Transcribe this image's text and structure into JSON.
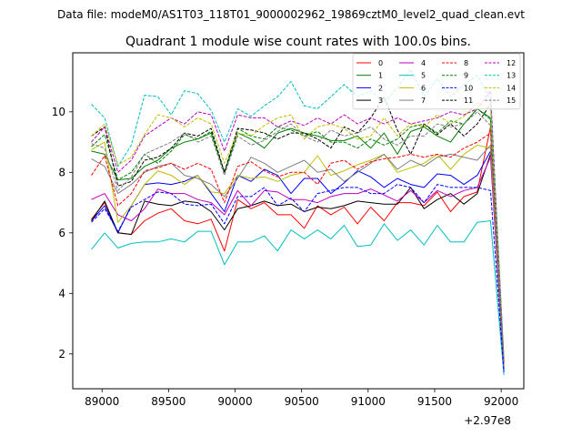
{
  "header": {
    "data_file": "Data file: modeM0/AS1T03_118T01_9000002962_19869cztM0_level2_quad_clean.evt"
  },
  "chart_data": {
    "type": "line",
    "title": "Quadrant 1 module wise count rates with 100.0s bins.",
    "xlabel": "",
    "ylabel": "",
    "x_offset_label": "+2.97e8",
    "x_ticks": [
      89000,
      89500,
      90000,
      90500,
      91000,
      91500,
      92000
    ],
    "x_tick_labels": [
      "89000",
      "89500",
      "90000",
      "90500",
      "91000",
      "91500",
      "92000"
    ],
    "y_ticks": [
      2,
      4,
      6,
      8,
      10
    ],
    "y_tick_labels": [
      "2",
      "4",
      "6",
      "8",
      "10"
    ],
    "xlim": [
      88780,
      92170
    ],
    "ylim": [
      0.85,
      11.95
    ],
    "grid": false,
    "legend": {
      "location": "top-right",
      "columns": 4
    },
    "x": [
      88920,
      89020,
      89120,
      89220,
      89320,
      89420,
      89520,
      89620,
      89720,
      89820,
      89920,
      90020,
      90120,
      90220,
      90320,
      90420,
      90520,
      90620,
      90720,
      90820,
      90920,
      91020,
      91120,
      91220,
      91320,
      91420,
      91520,
      91620,
      91720,
      91820,
      91920,
      92020
    ],
    "series": [
      {
        "name": "0",
        "color": "#ff0000",
        "dash": "solid",
        "values": [
          6.45,
          7.0,
          6.0,
          5.95,
          6.4,
          6.65,
          6.8,
          6.4,
          6.3,
          6.45,
          5.4,
          7.1,
          6.8,
          7.0,
          6.6,
          6.6,
          6.15,
          6.9,
          6.6,
          6.85,
          6.3,
          6.85,
          6.4,
          7.0,
          7.0,
          6.9,
          7.35,
          6.7,
          7.2,
          7.35,
          9.5,
          1.5
        ]
      },
      {
        "name": "1",
        "color": "#008000",
        "dash": "solid",
        "values": [
          8.7,
          8.6,
          7.75,
          7.8,
          8.2,
          8.4,
          8.8,
          9.0,
          9.1,
          9.3,
          8.0,
          9.3,
          9.1,
          8.8,
          9.3,
          9.45,
          9.3,
          9.2,
          9.05,
          9.05,
          9.2,
          8.8,
          9.3,
          8.6,
          9.35,
          9.5,
          9.2,
          9.0,
          9.6,
          10.1,
          9.8,
          1.6
        ]
      },
      {
        "name": "2",
        "color": "#0000ff",
        "dash": "solid",
        "values": [
          6.4,
          6.9,
          6.0,
          6.9,
          7.6,
          7.65,
          7.6,
          7.7,
          7.9,
          7.3,
          6.7,
          7.9,
          7.7,
          8.1,
          7.9,
          7.3,
          7.8,
          7.8,
          7.3,
          7.65,
          8.05,
          7.85,
          7.5,
          7.8,
          7.6,
          7.5,
          7.95,
          7.9,
          7.6,
          7.9,
          8.7,
          1.4
        ]
      },
      {
        "name": "3",
        "color": "#000000",
        "dash": "solid",
        "values": [
          6.4,
          7.05,
          6.0,
          5.95,
          7.05,
          6.95,
          6.9,
          7.05,
          7.0,
          6.7,
          6.1,
          6.8,
          6.9,
          7.05,
          6.9,
          6.95,
          6.7,
          6.85,
          6.8,
          6.9,
          7.05,
          7.0,
          6.95,
          6.95,
          7.5,
          6.8,
          7.1,
          7.3,
          6.95,
          7.3,
          8.6,
          1.5
        ]
      },
      {
        "name": "4",
        "color": "#bf00bf",
        "dash": "solid",
        "values": [
          7.1,
          7.3,
          6.6,
          6.4,
          6.8,
          7.45,
          7.3,
          7.3,
          7.1,
          7.0,
          6.6,
          7.4,
          6.9,
          7.4,
          7.35,
          7.1,
          7.1,
          7.0,
          7.2,
          7.3,
          7.3,
          7.45,
          7.25,
          7.05,
          7.4,
          7.0,
          7.4,
          7.2,
          7.4,
          7.5,
          8.5,
          1.5
        ]
      },
      {
        "name": "5",
        "color": "#00bfbf",
        "dash": "solid",
        "values": [
          5.45,
          6.0,
          5.5,
          5.65,
          5.7,
          5.7,
          5.8,
          5.7,
          6.05,
          6.05,
          4.95,
          5.7,
          5.7,
          5.9,
          5.4,
          6.1,
          5.8,
          6.1,
          5.8,
          6.25,
          5.55,
          5.6,
          6.3,
          5.75,
          6.1,
          5.6,
          6.25,
          5.7,
          5.7,
          6.35,
          6.4,
          1.3
        ]
      },
      {
        "name": "6",
        "color": "#bfbf00",
        "dash": "solid",
        "values": [
          8.75,
          9.0,
          6.35,
          6.9,
          7.6,
          8.05,
          7.9,
          7.6,
          7.9,
          7.35,
          7.3,
          7.9,
          7.8,
          7.85,
          7.7,
          7.9,
          8.0,
          8.55,
          7.9,
          8.05,
          8.25,
          8.4,
          8.6,
          8.0,
          8.15,
          8.3,
          8.6,
          8.1,
          8.6,
          8.9,
          8.8,
          1.6
        ]
      },
      {
        "name": "7",
        "color": "#808080",
        "dash": "solid",
        "values": [
          8.45,
          8.2,
          7.3,
          7.6,
          8.0,
          8.2,
          8.3,
          7.9,
          7.8,
          7.6,
          7.2,
          7.8,
          8.5,
          8.3,
          8.0,
          8.2,
          8.4,
          8.0,
          8.1,
          7.7,
          8.0,
          8.3,
          8.6,
          8.1,
          8.4,
          8.2,
          8.5,
          8.6,
          8.5,
          8.4,
          8.9,
          1.6
        ]
      },
      {
        "name": "8",
        "color": "#ff0000",
        "dash": "dashed",
        "values": [
          7.9,
          8.55,
          6.9,
          7.3,
          8.05,
          8.15,
          8.3,
          8.1,
          8.3,
          8.1,
          7.0,
          8.2,
          8.35,
          8.05,
          7.85,
          8.0,
          8.0,
          7.6,
          8.3,
          8.4,
          8.1,
          8.35,
          8.45,
          8.5,
          8.6,
          8.5,
          8.6,
          8.5,
          8.8,
          9.0,
          9.3,
          1.7
        ]
      },
      {
        "name": "9",
        "color": "#008000",
        "dash": "dashed",
        "values": [
          8.85,
          9.25,
          7.75,
          8.0,
          8.6,
          8.3,
          8.7,
          9.25,
          9.1,
          9.35,
          8.0,
          9.45,
          9.2,
          9.1,
          9.5,
          9.4,
          9.2,
          9.35,
          9.0,
          9.0,
          8.8,
          9.1,
          8.9,
          9.1,
          9.5,
          9.6,
          9.3,
          9.7,
          9.6,
          10.1,
          9.75,
          1.7
        ]
      },
      {
        "name": "10",
        "color": "#0000ff",
        "dash": "dashed",
        "values": [
          6.35,
          6.8,
          6.05,
          6.85,
          7.1,
          7.35,
          7.3,
          6.95,
          6.9,
          6.95,
          6.3,
          7.2,
          7.2,
          7.5,
          6.9,
          7.15,
          6.7,
          7.3,
          7.4,
          7.5,
          7.5,
          7.3,
          7.3,
          7.6,
          7.5,
          7.0,
          7.6,
          7.5,
          7.5,
          7.5,
          7.4,
          1.4
        ]
      },
      {
        "name": "11",
        "color": "#000000",
        "dash": "dashed",
        "values": [
          9.2,
          9.5,
          7.55,
          7.7,
          8.4,
          8.5,
          8.8,
          9.3,
          9.2,
          9.45,
          8.0,
          9.45,
          9.4,
          9.3,
          9.1,
          9.3,
          9.3,
          9.1,
          8.8,
          9.5,
          9.3,
          9.8,
          10.5,
          9.4,
          8.6,
          9.6,
          9.25,
          9.6,
          9.2,
          9.6,
          10.25,
          1.8
        ]
      },
      {
        "name": "12",
        "color": "#bf00bf",
        "dash": "dashed",
        "values": [
          9.0,
          9.5,
          8.0,
          8.4,
          9.2,
          9.5,
          9.8,
          9.6,
          10.0,
          9.9,
          8.7,
          9.9,
          9.8,
          9.8,
          9.5,
          9.7,
          9.55,
          9.8,
          9.6,
          9.9,
          9.6,
          9.8,
          9.6,
          9.8,
          9.6,
          9.7,
          9.8,
          10.0,
          9.9,
          10.1,
          10.7,
          1.7
        ]
      },
      {
        "name": "13",
        "color": "#00bfbf",
        "dash": "dashed",
        "values": [
          10.25,
          9.8,
          8.2,
          8.9,
          10.55,
          10.5,
          9.9,
          10.7,
          10.6,
          10.05,
          9.0,
          10.1,
          9.85,
          10.2,
          10.5,
          11.0,
          10.2,
          10.1,
          10.5,
          10.9,
          10.5,
          10.7,
          10.3,
          10.8,
          11.4,
          10.5,
          11.1,
          10.5,
          10.9,
          11.2,
          10.4,
          1.9
        ]
      },
      {
        "name": "14",
        "color": "#bfbf00",
        "dash": "dashed",
        "values": [
          9.2,
          9.6,
          8.25,
          8.5,
          9.25,
          9.9,
          9.8,
          9.5,
          9.8,
          9.6,
          8.3,
          9.3,
          9.2,
          9.55,
          9.8,
          9.9,
          9.1,
          9.5,
          9.6,
          9.45,
          9.1,
          9.2,
          9.8,
          9.2,
          9.6,
          9.5,
          9.9,
          9.6,
          9.85,
          10.3,
          10.1,
          1.8
        ]
      },
      {
        "name": "15",
        "color": "#808080",
        "dash": "dashed",
        "values": [
          8.95,
          8.8,
          7.4,
          7.85,
          8.6,
          8.8,
          9.0,
          9.3,
          9.0,
          9.2,
          7.9,
          9.2,
          8.9,
          9.05,
          9.35,
          9.6,
          9.2,
          9.0,
          9.4,
          9.2,
          9.3,
          9.5,
          9.1,
          8.9,
          9.2,
          9.2,
          9.6,
          9.5,
          9.6,
          10.0,
          9.55,
          1.8
        ]
      }
    ]
  }
}
